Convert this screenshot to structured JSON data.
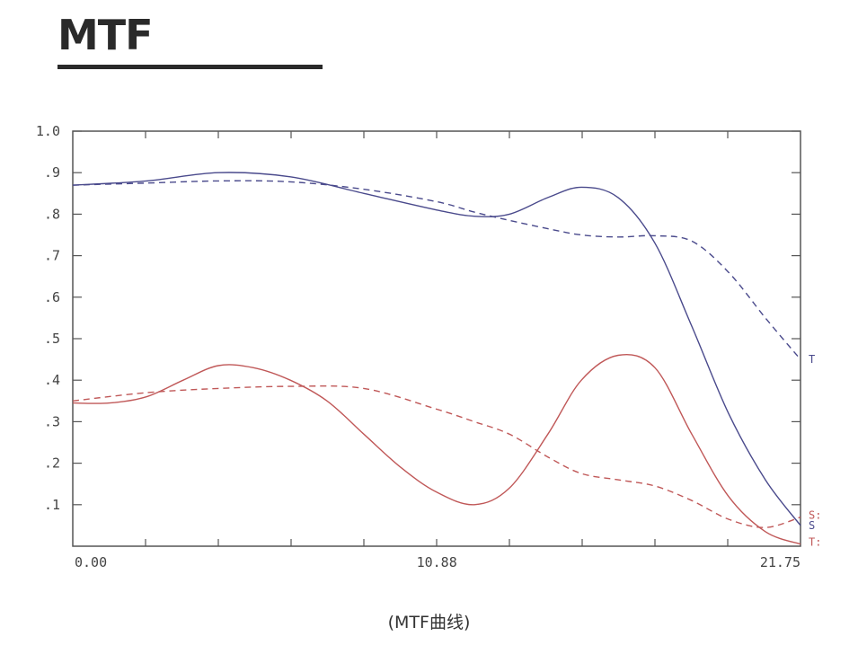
{
  "header": {
    "title": "MTF"
  },
  "caption": "(MTF曲线)",
  "colors": {
    "tangential": "#4a4a8c",
    "sagittal": "#c05858",
    "axis": "#555555",
    "title": "#2a2a2a"
  },
  "chart_data": {
    "type": "line",
    "title": "",
    "xlabel": "",
    "ylabel": "",
    "xlim": [
      0,
      21.75
    ],
    "ylim": [
      0,
      1.0
    ],
    "grid": false,
    "x_ticks": [
      0,
      10.88,
      21.75
    ],
    "x_tick_labels": [
      "0.00",
      "10.88",
      "21.75"
    ],
    "y_ticks": [
      0.1,
      0.2,
      0.3,
      0.4,
      0.5,
      0.6,
      0.7,
      0.8,
      0.9,
      1.0
    ],
    "y_tick_labels": [
      ".1",
      ".2",
      ".3",
      ".4",
      ".5",
      ".6",
      ".7",
      ".8",
      ".9",
      "1.0"
    ],
    "series": [
      {
        "name": "T",
        "color": "#4a4a8c",
        "style": "solid",
        "label_y": 0.45,
        "x": [
          0,
          2.2,
          4.35,
          6.5,
          8.7,
          10.88,
          12.0,
          13.05,
          14.2,
          15.2,
          16.3,
          17.4,
          18.5,
          19.6,
          20.7,
          21.75
        ],
        "y": [
          0.87,
          0.88,
          0.9,
          0.89,
          0.85,
          0.81,
          0.795,
          0.8,
          0.84,
          0.865,
          0.84,
          0.73,
          0.53,
          0.32,
          0.16,
          0.05
        ]
      },
      {
        "name": "S",
        "color": "#4a4a8c",
        "style": "dashed",
        "label_y": 0.05,
        "x": [
          0,
          2.2,
          4.35,
          6.5,
          8.7,
          10.88,
          12.0,
          13.05,
          14.2,
          15.2,
          16.3,
          17.4,
          18.5,
          19.6,
          20.7,
          21.75
        ],
        "y": [
          0.87,
          0.875,
          0.88,
          0.878,
          0.86,
          0.83,
          0.805,
          0.785,
          0.765,
          0.75,
          0.745,
          0.748,
          0.735,
          0.66,
          0.55,
          0.45
        ]
      },
      {
        "name": "S:",
        "color": "#c05858",
        "style": "dashed",
        "label_y": 0.075,
        "x": [
          0,
          2.2,
          4.35,
          6.5,
          8.7,
          10.88,
          12.0,
          13.05,
          14.2,
          15.2,
          16.3,
          17.4,
          18.5,
          19.6,
          20.7,
          21.75
        ],
        "y": [
          0.35,
          0.37,
          0.38,
          0.385,
          0.38,
          0.33,
          0.3,
          0.27,
          0.215,
          0.175,
          0.16,
          0.145,
          0.11,
          0.065,
          0.045,
          0.07
        ]
      },
      {
        "name": "T:",
        "color": "#c05858",
        "style": "solid",
        "label_y": 0.01,
        "x": [
          0,
          1.1,
          2.2,
          3.3,
          4.35,
          5.4,
          6.5,
          7.6,
          8.7,
          9.8,
          10.88,
          12.0,
          13.05,
          14.2,
          15.2,
          16.3,
          17.4,
          18.5,
          19.6,
          20.7,
          21.75
        ],
        "y": [
          0.345,
          0.345,
          0.36,
          0.4,
          0.435,
          0.43,
          0.4,
          0.35,
          0.27,
          0.19,
          0.13,
          0.1,
          0.14,
          0.27,
          0.4,
          0.46,
          0.43,
          0.27,
          0.12,
          0.035,
          0.005
        ]
      }
    ]
  }
}
